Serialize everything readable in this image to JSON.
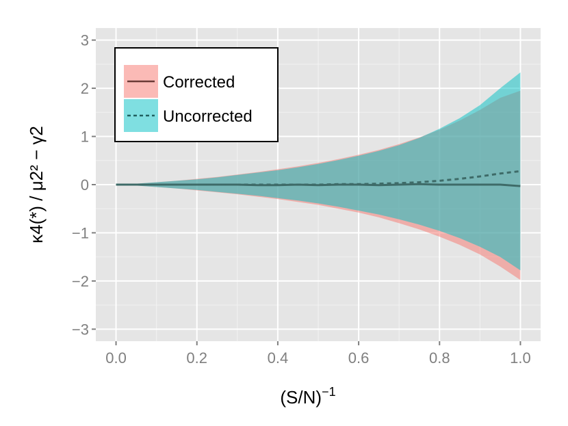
{
  "chart_data": {
    "type": "area",
    "x": [
      0.0,
      0.05,
      0.1,
      0.15,
      0.2,
      0.25,
      0.3,
      0.35,
      0.4,
      0.45,
      0.5,
      0.55,
      0.6,
      0.65,
      0.7,
      0.75,
      0.8,
      0.85,
      0.9,
      0.95,
      1.0
    ],
    "series": [
      {
        "name": "Corrected",
        "color": "#F8766D",
        "line_style": "solid",
        "mean": [
          0.0,
          0.0,
          0.0,
          0.0,
          0.0,
          0.0,
          0.0,
          -0.01,
          -0.01,
          0.0,
          -0.01,
          0.0,
          0.0,
          -0.01,
          0.0,
          0.01,
          0.0,
          0.0,
          0.0,
          0.0,
          -0.03
        ],
        "lower": [
          0.0,
          -0.02,
          -0.05,
          -0.08,
          -0.12,
          -0.16,
          -0.2,
          -0.25,
          -0.3,
          -0.36,
          -0.42,
          -0.5,
          -0.58,
          -0.68,
          -0.8,
          -0.93,
          -1.08,
          -1.25,
          -1.45,
          -1.7,
          -1.98
        ],
        "upper": [
          0.0,
          0.02,
          0.05,
          0.08,
          0.12,
          0.16,
          0.21,
          0.26,
          0.32,
          0.38,
          0.45,
          0.53,
          0.62,
          0.72,
          0.84,
          0.98,
          1.14,
          1.33,
          1.55,
          1.8,
          1.95
        ]
      },
      {
        "name": "Uncorrected",
        "color": "#00BFC4",
        "line_style": "dashed",
        "mean": [
          0.0,
          0.0,
          0.0,
          0.0,
          0.0,
          0.0,
          0.0,
          0.0,
          0.0,
          0.0,
          0.0,
          0.01,
          0.01,
          0.02,
          0.03,
          0.05,
          0.08,
          0.12,
          0.17,
          0.23,
          0.28
        ],
        "lower": [
          0.0,
          -0.02,
          -0.05,
          -0.08,
          -0.11,
          -0.15,
          -0.19,
          -0.23,
          -0.28,
          -0.33,
          -0.39,
          -0.46,
          -0.54,
          -0.62,
          -0.72,
          -0.83,
          -0.96,
          -1.11,
          -1.29,
          -1.5,
          -1.78
        ],
        "upper": [
          0.0,
          0.02,
          0.05,
          0.08,
          0.11,
          0.15,
          0.2,
          0.25,
          0.3,
          0.36,
          0.43,
          0.51,
          0.6,
          0.7,
          0.82,
          0.97,
          1.16,
          1.38,
          1.65,
          2.0,
          2.33
        ]
      }
    ],
    "xlabel": "(S/N)",
    "xlabel_sup": "−1",
    "ylabel": "κ4(*) / μ2² − γ2",
    "xlim": [
      -0.05,
      1.05
    ],
    "ylim": [
      -3.25,
      3.25
    ],
    "xticks": [
      0.0,
      0.2,
      0.4,
      0.6,
      0.8,
      1.0
    ],
    "xtick_labels": [
      "0.0",
      "0.2",
      "0.4",
      "0.6",
      "0.8",
      "1.0"
    ],
    "yticks": [
      -3,
      -2,
      -1,
      0,
      1,
      2,
      3
    ],
    "ytick_labels": [
      "−3",
      "−2",
      "−1",
      "0",
      "1",
      "2",
      "3"
    ],
    "grid": true,
    "legend_position": "top-left",
    "panel_color": "#E5E5E5",
    "grid_color": "#FFFFFF"
  }
}
